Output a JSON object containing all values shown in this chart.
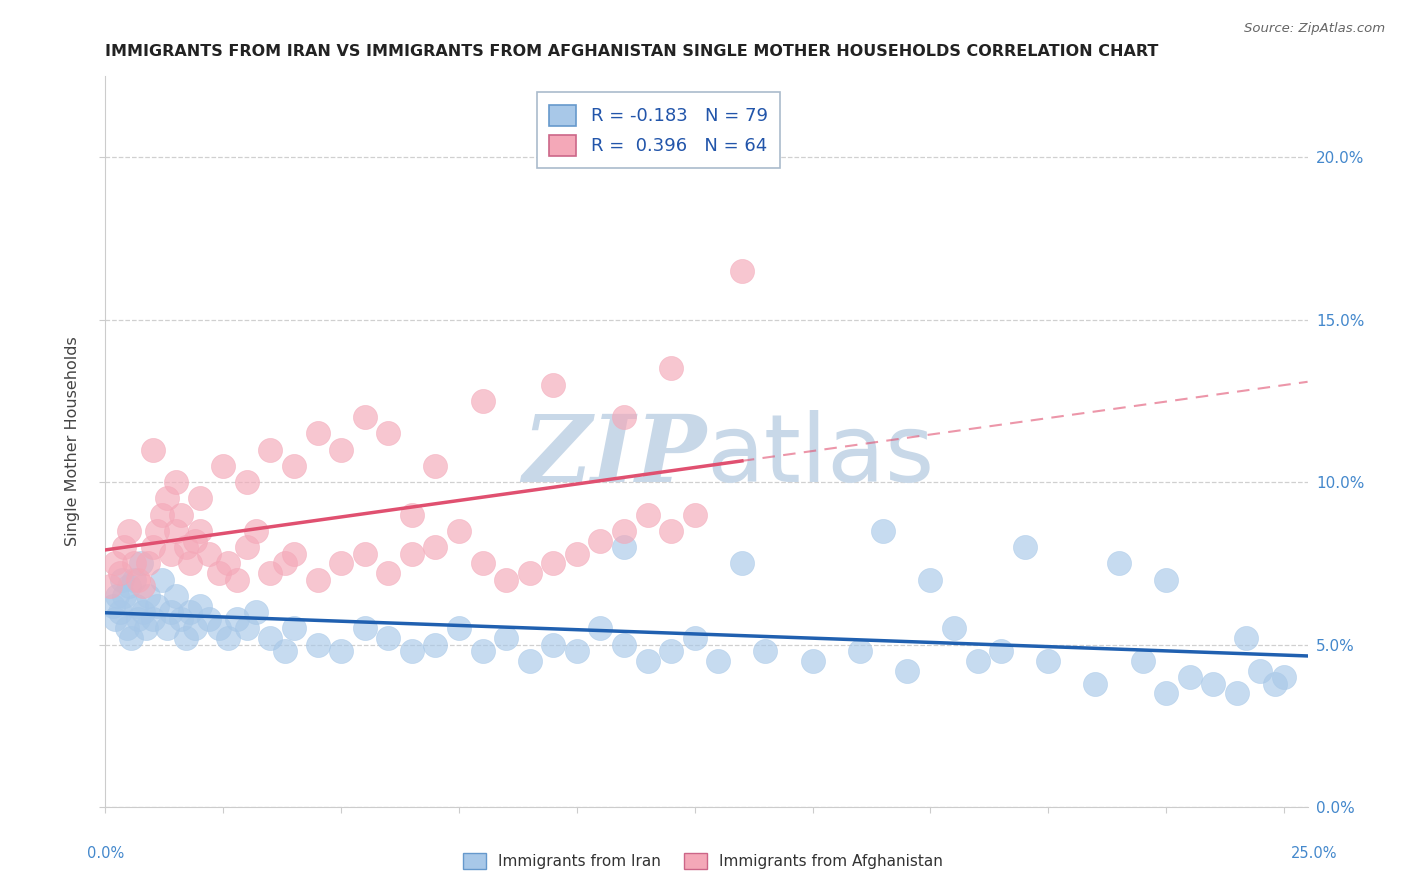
{
  "title": "IMMIGRANTS FROM IRAN VS IMMIGRANTS FROM AFGHANISTAN SINGLE MOTHER HOUSEHOLDS CORRELATION CHART",
  "source": "Source: ZipAtlas.com",
  "ylabel": "Single Mother Households",
  "iran_color": "#a8c8e8",
  "afghanistan_color": "#f4a8b8",
  "iran_line_color": "#2060b0",
  "afghanistan_line_color": "#e05070",
  "iran_R": -0.183,
  "iran_N": 79,
  "afghanistan_R": 0.396,
  "afghanistan_N": 64,
  "watermark_zip": "ZIP",
  "watermark_atlas": "atlas",
  "watermark_color": "#c8d8e8",
  "background_color": "#ffffff",
  "grid_color": "#d0d0d0",
  "tick_color": "#4488cc",
  "xlim": [
    0,
    25.5
  ],
  "ylim": [
    0,
    22.5
  ],
  "ytick_vals": [
    0.0,
    5.0,
    10.0,
    15.0,
    20.0
  ],
  "iran_x": [
    0.15,
    0.2,
    0.25,
    0.3,
    0.35,
    0.4,
    0.45,
    0.5,
    0.55,
    0.6,
    0.65,
    0.7,
    0.75,
    0.8,
    0.85,
    0.9,
    1.0,
    1.1,
    1.2,
    1.3,
    1.4,
    1.5,
    1.6,
    1.7,
    1.8,
    1.9,
    2.0,
    2.2,
    2.4,
    2.6,
    2.8,
    3.0,
    3.2,
    3.5,
    3.8,
    4.0,
    4.5,
    5.0,
    5.5,
    6.0,
    6.5,
    7.0,
    7.5,
    8.0,
    8.5,
    9.0,
    9.5,
    10.0,
    10.5,
    11.0,
    11.5,
    12.0,
    12.5,
    13.0,
    14.0,
    15.0,
    16.0,
    17.0,
    18.0,
    18.5,
    19.0,
    20.0,
    21.0,
    22.0,
    22.5,
    23.0,
    23.5,
    24.0,
    24.5,
    24.8,
    25.0,
    11.0,
    13.5,
    16.5,
    17.5,
    19.5,
    21.5,
    22.5,
    24.2
  ],
  "iran_y": [
    6.2,
    5.8,
    6.5,
    6.0,
    7.0,
    6.5,
    5.5,
    6.8,
    5.2,
    7.0,
    6.2,
    5.8,
    7.5,
    6.0,
    5.5,
    6.5,
    5.8,
    6.2,
    7.0,
    5.5,
    6.0,
    6.5,
    5.8,
    5.2,
    6.0,
    5.5,
    6.2,
    5.8,
    5.5,
    5.2,
    5.8,
    5.5,
    6.0,
    5.2,
    4.8,
    5.5,
    5.0,
    4.8,
    5.5,
    5.2,
    4.8,
    5.0,
    5.5,
    4.8,
    5.2,
    4.5,
    5.0,
    4.8,
    5.5,
    5.0,
    4.5,
    4.8,
    5.2,
    4.5,
    4.8,
    4.5,
    4.8,
    4.2,
    5.5,
    4.5,
    4.8,
    4.5,
    3.8,
    4.5,
    3.5,
    4.0,
    3.8,
    3.5,
    4.2,
    3.8,
    4.0,
    8.0,
    7.5,
    8.5,
    7.0,
    8.0,
    7.5,
    7.0,
    5.2
  ],
  "afghanistan_x": [
    0.1,
    0.2,
    0.3,
    0.4,
    0.5,
    0.6,
    0.7,
    0.8,
    0.9,
    1.0,
    1.1,
    1.2,
    1.3,
    1.4,
    1.5,
    1.6,
    1.7,
    1.8,
    1.9,
    2.0,
    2.2,
    2.4,
    2.6,
    2.8,
    3.0,
    3.2,
    3.5,
    3.8,
    4.0,
    4.5,
    5.0,
    5.5,
    6.0,
    6.5,
    7.0,
    7.5,
    8.0,
    8.5,
    9.0,
    9.5,
    10.0,
    10.5,
    11.0,
    11.5,
    12.0,
    12.5,
    1.0,
    1.5,
    2.0,
    2.5,
    3.0,
    3.5,
    4.0,
    4.5,
    5.0,
    5.5,
    6.0,
    7.0,
    8.0,
    9.5,
    11.0,
    12.0,
    13.5,
    6.5
  ],
  "afghanistan_y": [
    6.8,
    7.5,
    7.2,
    8.0,
    8.5,
    7.5,
    7.0,
    6.8,
    7.5,
    8.0,
    8.5,
    9.0,
    9.5,
    7.8,
    8.5,
    9.0,
    8.0,
    7.5,
    8.2,
    8.5,
    7.8,
    7.2,
    7.5,
    7.0,
    8.0,
    8.5,
    7.2,
    7.5,
    7.8,
    7.0,
    7.5,
    7.8,
    7.2,
    7.8,
    8.0,
    8.5,
    7.5,
    7.0,
    7.2,
    7.5,
    7.8,
    8.2,
    8.5,
    9.0,
    8.5,
    9.0,
    11.0,
    10.0,
    9.5,
    10.5,
    10.0,
    11.0,
    10.5,
    11.5,
    11.0,
    12.0,
    11.5,
    10.5,
    12.5,
    13.0,
    12.0,
    13.5,
    16.5,
    9.0
  ]
}
